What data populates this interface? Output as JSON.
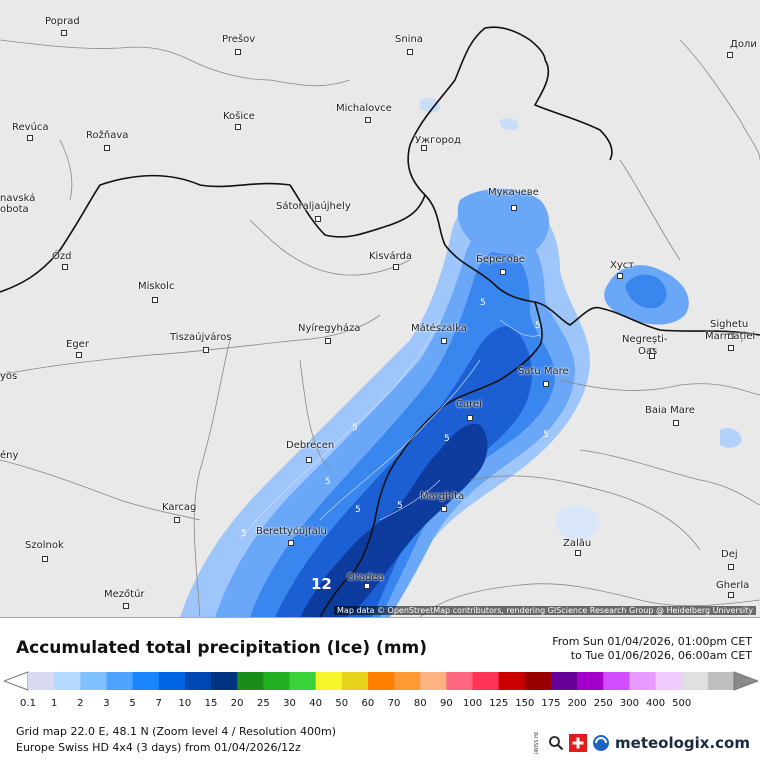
{
  "map": {
    "cities": [
      {
        "name": "Poprad"
      },
      {
        "name": "Prešov"
      },
      {
        "name": "Snina"
      },
      {
        "name": "Доли"
      },
      {
        "name": "Revúca"
      },
      {
        "name": "Rožňava"
      },
      {
        "name": "Košice"
      },
      {
        "name": "Michalovce"
      },
      {
        "name": "Ужгород"
      },
      {
        "name": "navská"
      },
      {
        "name": "obota"
      },
      {
        "name": "Sátoraljaújhely"
      },
      {
        "name": "Мукачеве"
      },
      {
        "name": "Ózd"
      },
      {
        "name": "Kisvárda"
      },
      {
        "name": "Берегове"
      },
      {
        "name": "Хуст"
      },
      {
        "name": "Miskolc"
      },
      {
        "name": "Sighetu"
      },
      {
        "name": "Marmației"
      },
      {
        "name": "Nyíregyháza"
      },
      {
        "name": "Mátészalka"
      },
      {
        "name": "Eger"
      },
      {
        "name": "Tiszaújváros"
      },
      {
        "name": "Negrești-"
      },
      {
        "name": "Oaș"
      },
      {
        "name": "yös"
      },
      {
        "name": "Satu Mare"
      },
      {
        "name": "Carei"
      },
      {
        "name": "Baia Mare"
      },
      {
        "name": "Debrecen"
      },
      {
        "name": "ény"
      },
      {
        "name": "Marghita"
      },
      {
        "name": "Karcag"
      },
      {
        "name": "Berettyóújfalu"
      },
      {
        "name": "Zalău"
      },
      {
        "name": "Szolnok"
      },
      {
        "name": "Dej"
      },
      {
        "name": "Oradea"
      },
      {
        "name": "Gherla"
      },
      {
        "name": "Mezőtúr"
      }
    ],
    "contour_labels": [
      "5",
      "5",
      "5",
      "5",
      "5",
      "5",
      "5",
      "5",
      "5",
      "12"
    ],
    "attribution": "Map data © OpenStreetMap contributors, rendering GIScience Research Group @ Heidelberg University"
  },
  "legend": {
    "title": "Accumulated total precipitation (Ice) (mm)",
    "period_from": "From Sun 01/04/2026, 01:00pm CET",
    "period_to": "to Tue 01/06/2026, 06:00am CET",
    "scale_values": [
      "0.1",
      "1",
      "2",
      "3",
      "5",
      "7",
      "10",
      "15",
      "20",
      "25",
      "30",
      "40",
      "50",
      "60",
      "70",
      "80",
      "90",
      "100",
      "125",
      "150",
      "175",
      "200",
      "250",
      "300",
      "400",
      "500"
    ],
    "scale_colors": [
      "#d9d9f2",
      "#b3d9ff",
      "#80c0ff",
      "#4da3ff",
      "#1a85ff",
      "#0066e6",
      "#0047b3",
      "#003380",
      "#1a8c1a",
      "#22b022",
      "#3cd23c",
      "#f5f52a",
      "#e6d21a",
      "#ff8000",
      "#ff9933",
      "#ffb380",
      "#ff6680",
      "#ff3355",
      "#cc0000",
      "#990000",
      "#660099",
      "#a300cc",
      "#d24dff",
      "#e699ff",
      "#f2ccff",
      "#e0e0e0",
      "#bfbfbf"
    ],
    "grid_info": "Grid map 22.0 E, 48.1 N (Zoom level 4 / Resolution 400m)",
    "model_info": "Europe Swiss HD 4x4 (3 days) from 01/04/2026/12z",
    "logo_text": "meteologix.com",
    "swiss_text": "SWISS HD"
  }
}
